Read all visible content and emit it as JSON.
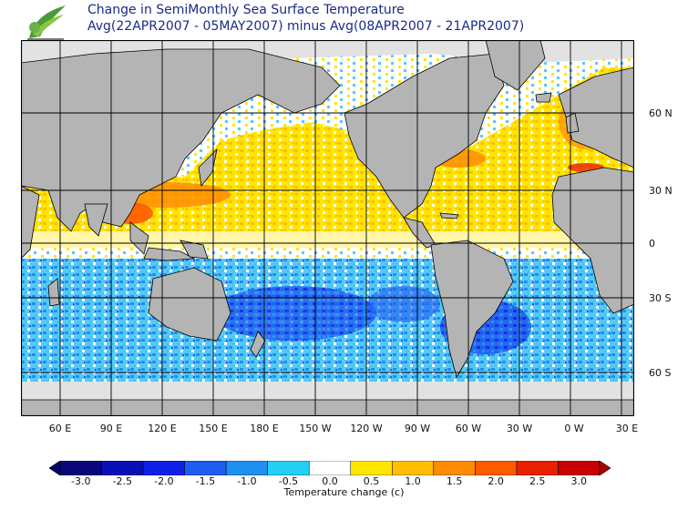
{
  "header": {
    "title_line1": "Change in SemiMonthly Sea Surface Temperature",
    "title_line2": "Avg(22APR2007 - 05MAY2007) minus Avg(08APR2007 - 21APR2007)"
  },
  "map": {
    "lat_labels": [
      "60 N",
      "30 N",
      "0",
      "30 S",
      "60 S"
    ],
    "lon_labels": [
      "60 E",
      "90 E",
      "120 E",
      "150 E",
      "180 E",
      "150 W",
      "120 W",
      "90 W",
      "60 W",
      "30 W",
      "0 W",
      "30 E"
    ],
    "colors": {
      "land": "#b4b4b4",
      "ice": "#e2e2e2",
      "ocean_neutral": "#ffffff",
      "grid": "#000000"
    }
  },
  "colorbar": {
    "ticks": [
      "-3.0",
      "-2.5",
      "-2.0",
      "-1.5",
      "-1.0",
      "-0.5",
      "0.0",
      "0.5",
      "1.0",
      "1.5",
      "2.0",
      "2.5",
      "3.0"
    ],
    "colors": [
      "#08087a",
      "#0a10b8",
      "#1020e8",
      "#1e5cf0",
      "#1f8ff2",
      "#22d0f5",
      "#ffffff",
      "#ffe600",
      "#ffbf00",
      "#ff8c00",
      "#ff5a00",
      "#e82000",
      "#c80000"
    ],
    "unit_label": "Temperature change (c)"
  }
}
